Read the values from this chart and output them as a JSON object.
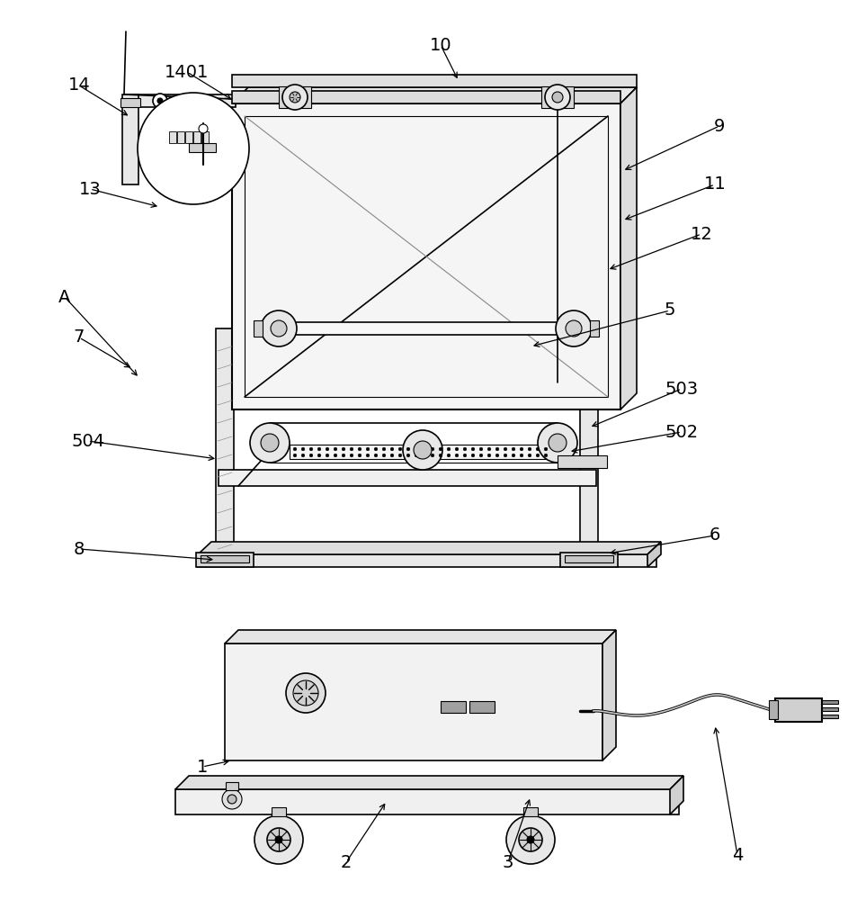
{
  "bg_color": "#ffffff",
  "line_color": "#000000",
  "fill_light": "#e8e8e8",
  "fill_lighter": "#f0f0f0",
  "fill_mid": "#d0d0d0",
  "fill_dark": "#b0b0b0"
}
